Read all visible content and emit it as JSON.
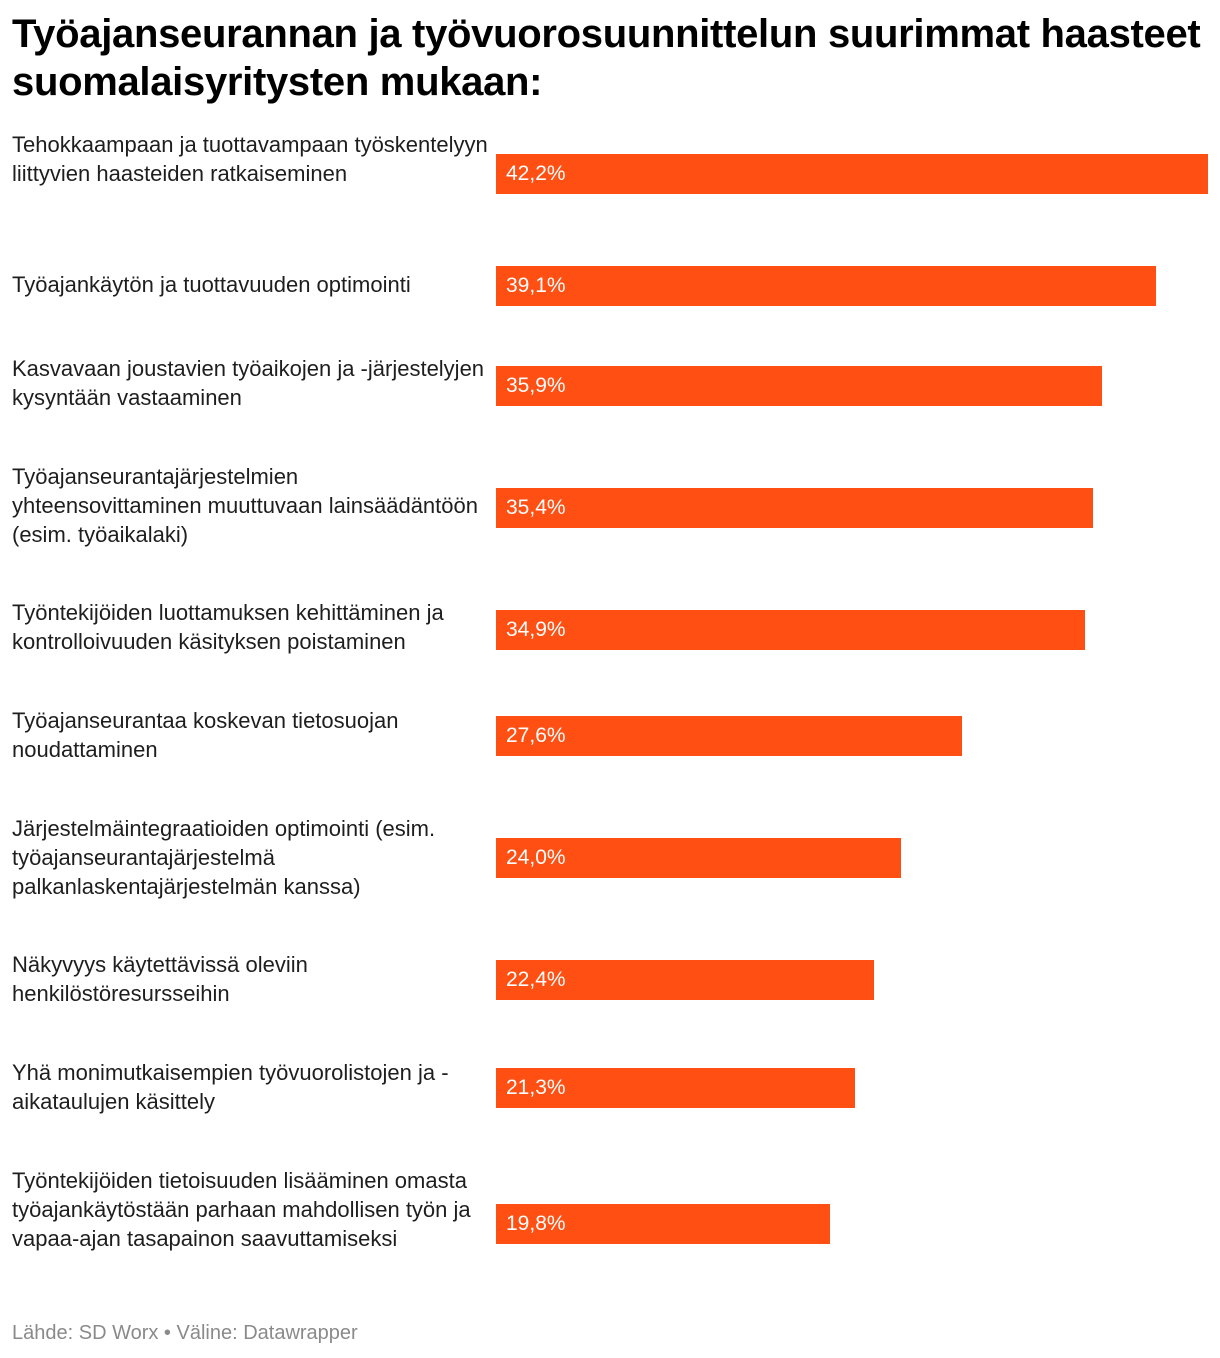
{
  "chart_data": {
    "type": "bar",
    "orientation": "horizontal",
    "title": "Työajanseurannan ja työvuorosuunnittelun suurimmat haasteet suomalaisyritysten mukaan:",
    "value_suffix": "%",
    "categories": [
      "Tehokkaampaan ja tuottavampaan työskentelyyn liittyvien haasteiden ratkaiseminen",
      "Työajankäytön ja tuottavuuden optimointi",
      "Kasvavaan joustavien työaikojen ja -järjestelyjen kysyntään vastaaminen",
      "Työajanseurantajärjestelmien yhteensovittaminen muuttuvaan lainsäädäntöön (esim. työaikalaki)",
      "Työntekijöiden luottamuksen kehittäminen ja kontrolloivuuden käsityksen poistaminen",
      "Työajanseurantaa koskevan tietosuojan noudattaminen",
      "Järjestelmäintegraatioiden optimointi (esim. työajanseurantajärjestelmä palkanlaskentajärjestelmän kanssa)",
      "Näkyvyys käytettävissä oleviin henkilöstöresursseihin",
      "Yhä monimutkaisempien työvuorolistojen ja -aikataulujen käsittely",
      "Työntekijöiden tietoisuuden lisääminen omasta työajankäytöstään parhaan mahdollisen työn ja vapaa-ajan tasapainon saavuttamiseksi"
    ],
    "values": [
      42.2,
      39.1,
      35.9,
      35.4,
      34.9,
      27.6,
      24.0,
      22.4,
      21.3,
      19.8
    ],
    "value_labels": [
      "42,2%",
      "39,1%",
      "35,9%",
      "35,4%",
      "34,9%",
      "27,6%",
      "24,0%",
      "22,4%",
      "21,3%",
      "19,8%"
    ],
    "xlim": [
      0,
      42.2
    ],
    "bar_color": "#ff4f12",
    "value_label_color": "#ffffff",
    "grid": false,
    "legend": "none"
  },
  "footer": "Lähde: SD Worx • Väline: Datawrapper"
}
